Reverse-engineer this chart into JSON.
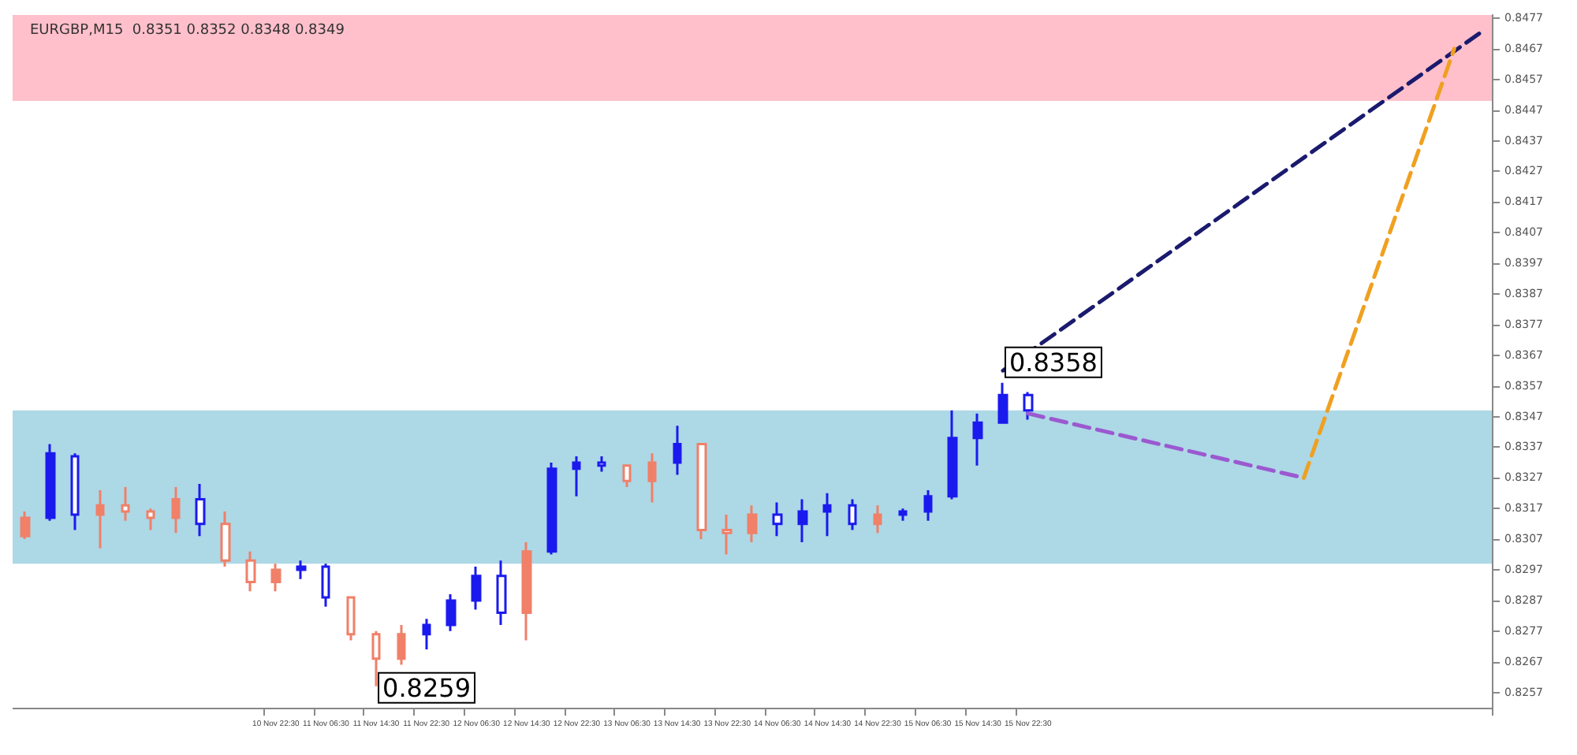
{
  "chart_data": {
    "type": "candlestick",
    "title": "EURGBP,M15  0.8351 0.8352 0.8348 0.8349",
    "categories": [
      null,
      null,
      null,
      null,
      null,
      null,
      null,
      null,
      null,
      null,
      "10 Nov 22:30",
      null,
      "11 Nov 06:30",
      null,
      "11 Nov 14:30",
      null,
      "11 Nov 22:30",
      null,
      "12 Nov 06:30",
      null,
      "12 Nov 14:30",
      null,
      "12 Nov 22:30",
      null,
      "13 Nov 06:30",
      null,
      "13 Nov 14:30",
      null,
      "13 Nov 22:30",
      null,
      "14 Nov 06:30",
      null,
      "14 Nov 14:30",
      null,
      "14 Nov 22:30",
      null,
      "15 Nov 06:30",
      null,
      "15 Nov 14:30",
      null,
      "15 Nov 22:30",
      null,
      null,
      null,
      null,
      null,
      null,
      null,
      null,
      null,
      null,
      null,
      null,
      null,
      null,
      null,
      null,
      null,
      null
    ],
    "ylim": [
      0.8252,
      0.8478
    ],
    "yticks": [
      0.8257,
      0.8267,
      0.8277,
      0.8287,
      0.8297,
      0.8307,
      0.8317,
      0.8327,
      0.8337,
      0.8347,
      0.8357,
      0.8367,
      0.8377,
      0.8387,
      0.8397,
      0.8407,
      0.8417,
      0.8427,
      0.8437,
      0.8447,
      0.8457,
      0.8467,
      0.8477
    ],
    "bands": [
      {
        "axis": "y",
        "from": 0.845,
        "to": 0.8478,
        "color": "#ffc0cb"
      },
      {
        "axis": "y",
        "from": 0.8299,
        "to": 0.8349,
        "color": "#add8e6"
      }
    ],
    "annotations": [
      "0.8358",
      "0.8259"
    ],
    "series": [
      {
        "color": "#f08068",
        "ohlc": [
          [
            0.8308,
            0.8316,
            0.8307,
            0.8314
          ],
          null,
          null,
          [
            0.8315,
            0.8323,
            0.8304,
            0.8318
          ],
          [
            0.8318,
            0.8324,
            0.8313,
            0.8316
          ],
          [
            0.8316,
            0.8317,
            0.831,
            0.8314
          ],
          [
            0.8314,
            0.8324,
            0.8309,
            0.832
          ],
          null,
          [
            0.8312,
            0.8316,
            0.8298,
            0.83
          ],
          [
            0.83,
            0.8303,
            0.829,
            0.8293
          ],
          [
            0.8293,
            0.8299,
            0.829,
            0.8297
          ],
          null,
          null,
          [
            0.8288,
            0.8288,
            0.8274,
            0.8276
          ],
          [
            0.8276,
            0.8277,
            0.8259,
            0.8268
          ],
          [
            0.8268,
            0.8279,
            0.8266,
            0.8276
          ],
          null,
          null,
          null,
          null,
          [
            0.8283,
            0.8306,
            0.8274,
            0.8303
          ],
          null,
          null,
          null,
          [
            0.8331,
            0.8331,
            0.8324,
            0.8326
          ],
          [
            0.8326,
            0.8335,
            0.8319,
            0.8332
          ],
          null,
          [
            0.8338,
            0.8338,
            0.8307,
            0.831
          ],
          [
            0.831,
            0.8315,
            0.8302,
            0.8309
          ],
          [
            0.8309,
            0.8318,
            0.8306,
            0.8315
          ],
          null,
          null,
          null,
          null,
          [
            0.8312,
            0.8318,
            0.8309,
            0.8315
          ],
          null,
          null,
          null,
          null,
          null,
          null,
          null,
          null,
          null,
          null,
          null,
          null,
          null,
          null,
          null,
          null,
          null,
          null,
          null,
          null,
          null,
          null,
          null,
          null
        ]
      },
      {
        "color": "#1a1aee",
        "ohlc": [
          null,
          [
            0.8314,
            0.8338,
            0.8313,
            0.8335
          ],
          [
            0.8334,
            0.8335,
            0.831,
            0.8315
          ],
          null,
          null,
          null,
          null,
          [
            0.832,
            0.8325,
            0.8308,
            0.8312
          ],
          null,
          null,
          null,
          [
            0.8297,
            0.83,
            0.8294,
            0.8298
          ],
          [
            0.8298,
            0.8299,
            0.8285,
            0.8288
          ],
          null,
          null,
          null,
          [
            0.8276,
            0.8281,
            0.8271,
            0.8279
          ],
          [
            0.8279,
            0.8289,
            0.8277,
            0.8287
          ],
          [
            0.8287,
            0.8298,
            0.8284,
            0.8295
          ],
          [
            0.8295,
            0.83,
            0.8279,
            0.8283
          ],
          null,
          [
            0.8303,
            0.8332,
            0.8302,
            0.833
          ],
          [
            0.833,
            0.8334,
            0.8321,
            0.8332
          ],
          [
            0.8332,
            0.8334,
            0.8329,
            0.8331
          ],
          null,
          null,
          [
            0.8332,
            0.8344,
            0.8328,
            0.8338
          ],
          null,
          null,
          null,
          [
            0.8315,
            0.8319,
            0.8308,
            0.8312
          ],
          [
            0.8312,
            0.832,
            0.8306,
            0.8316
          ],
          [
            0.8316,
            0.8322,
            0.8308,
            0.8318
          ],
          [
            0.8318,
            0.832,
            0.831,
            0.8312
          ],
          null,
          [
            0.8315,
            0.8317,
            0.8313,
            0.8316
          ],
          [
            0.8316,
            0.8323,
            0.8313,
            0.8321
          ],
          [
            0.8321,
            0.8349,
            0.832,
            0.834
          ],
          [
            0.834,
            0.8348,
            0.8331,
            0.8345
          ],
          [
            0.8345,
            0.8358,
            0.8345,
            0.8354
          ],
          [
            0.8354,
            0.8355,
            0.8346,
            0.8349
          ],
          null,
          null,
          null,
          null,
          null,
          null,
          null,
          null,
          null,
          null,
          null,
          null,
          null,
          null,
          null,
          null,
          null,
          null
        ]
      },
      {
        "type": "line",
        "color": "#1a1a6e",
        "line_style": "dashed",
        "marker": "none",
        "values": [
          null,
          null,
          null,
          null,
          null,
          null,
          null,
          null,
          null,
          null,
          null,
          null,
          null,
          null,
          null,
          null,
          null,
          null,
          null,
          null,
          null,
          null,
          null,
          null,
          null,
          null,
          null,
          null,
          null,
          null,
          null,
          null,
          null,
          null,
          null,
          null,
          null,
          null,
          null,
          0.8362,
          null,
          null,
          null,
          null,
          null,
          null,
          null,
          null,
          null,
          null,
          null,
          null,
          null,
          null,
          null,
          null,
          null,
          null,
          0.8472
        ]
      },
      {
        "type": "line",
        "color": "#9b59d0",
        "line_style": "dashed",
        "marker": "none",
        "values": [
          null,
          null,
          null,
          null,
          null,
          null,
          null,
          null,
          null,
          null,
          null,
          null,
          null,
          null,
          null,
          null,
          null,
          null,
          null,
          null,
          null,
          null,
          null,
          null,
          null,
          null,
          null,
          null,
          null,
          null,
          null,
          null,
          null,
          null,
          null,
          null,
          null,
          null,
          null,
          null,
          0.8348,
          null,
          null,
          null,
          null,
          null,
          null,
          null,
          null,
          null,
          null,
          0.8327,
          null,
          null,
          null,
          null,
          null,
          null,
          null
        ]
      },
      {
        "type": "line",
        "color": "#f0a020",
        "line_style": "dashed",
        "marker": "none",
        "values": [
          null,
          null,
          null,
          null,
          null,
          null,
          null,
          null,
          null,
          null,
          null,
          null,
          null,
          null,
          null,
          null,
          null,
          null,
          null,
          null,
          null,
          null,
          null,
          null,
          null,
          null,
          null,
          null,
          null,
          null,
          null,
          null,
          null,
          null,
          null,
          null,
          null,
          null,
          null,
          null,
          null,
          null,
          null,
          null,
          null,
          null,
          null,
          null,
          null,
          null,
          null,
          0.8327,
          null,
          null,
          null,
          null,
          null,
          0.8467,
          null
        ]
      }
    ]
  }
}
